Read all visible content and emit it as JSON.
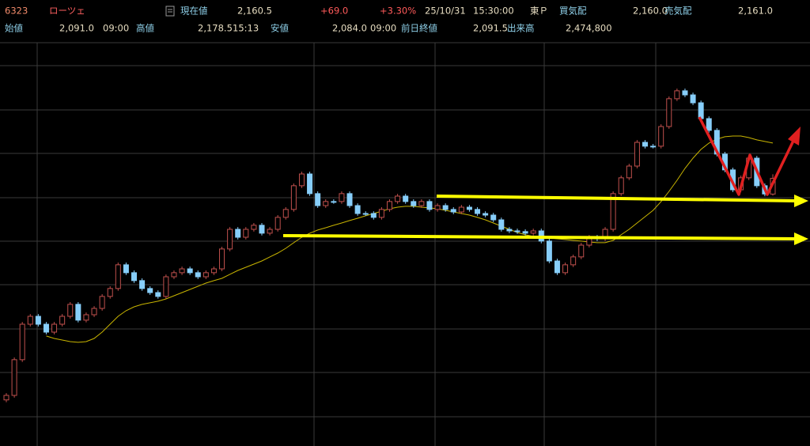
{
  "header": {
    "code": "6323",
    "name": "ローツェ",
    "price_label": "現在値",
    "price": "2,160.5",
    "change": "+69.0",
    "change_pct": "+3.30%",
    "date": "25/10/31",
    "time": "15:30:00",
    "market": "東Ｐ",
    "bid_label": "買気配",
    "bid": "2,160.0",
    "ask_label": "売気配",
    "ask": "2,161.0",
    "open_label": "始値",
    "open": "2,091.0",
    "open_time": "09:00",
    "high_label": "高値",
    "high": "2,178.5",
    "high_time": "15:13",
    "low_label": "安値",
    "low": "2,084.0",
    "low_time": "09:00",
    "prev_close_label": "前日終値",
    "prev_close": "2,091.5",
    "volume_label": "出来高",
    "volume": "2,474,800"
  },
  "chart_data": {
    "type": "candlestick",
    "ylim": [
      990,
      2757.5
    ],
    "up_color": "#c0504d",
    "down_color": "#87cefa",
    "open": [
      1180,
      1200,
      1358,
      1515,
      1550,
      1515,
      1480,
      1515,
      1550,
      1603,
      1533,
      1557,
      1585,
      1638,
      1673,
      1778,
      1743,
      1708,
      1673,
      1655,
      1638,
      1725,
      1743,
      1760,
      1743,
      1725,
      1743,
      1760,
      1848,
      1935,
      1900,
      1935,
      1953,
      1918,
      1935,
      1988,
      2023,
      2128,
      2180,
      2093,
      2040,
      2058,
      2058,
      2093,
      2040,
      2005,
      2005,
      1988,
      2023,
      2058,
      2082,
      2058,
      2040,
      2058,
      2023,
      2040,
      2023,
      2012,
      2033,
      2023,
      2005,
      1998,
      1977,
      1935,
      1928,
      1925,
      1918,
      1928,
      1883,
      1795,
      1743,
      1778,
      1813,
      1865,
      1900,
      1893,
      1935,
      2093,
      2163,
      2215,
      2320,
      2303,
      2303,
      2390,
      2513,
      2548,
      2530,
      2495,
      2425,
      2373,
      2268,
      2198,
      2110,
      2163,
      2250,
      2128,
      2091
    ],
    "high": [
      1210,
      1368,
      1525,
      1560,
      1560,
      1525,
      1525,
      1560,
      1613,
      1613,
      1567,
      1595,
      1648,
      1683,
      1788,
      1788,
      1753,
      1718,
      1683,
      1665,
      1735,
      1753,
      1770,
      1770,
      1753,
      1753,
      1770,
      1858,
      1945,
      1945,
      1945,
      1963,
      1963,
      1945,
      1998,
      2033,
      2138,
      2190,
      2190,
      2103,
      2068,
      2068,
      2103,
      2103,
      2050,
      2015,
      2015,
      2033,
      2068,
      2092,
      2092,
      2068,
      2068,
      2068,
      2050,
      2050,
      2033,
      2043,
      2043,
      2033,
      2015,
      2008,
      1987,
      1945,
      1938,
      1935,
      1938,
      1938,
      1893,
      1805,
      1788,
      1823,
      1875,
      1910,
      1910,
      1945,
      2103,
      2173,
      2225,
      2330,
      2330,
      2313,
      2400,
      2523,
      2558,
      2558,
      2540,
      2505,
      2435,
      2383,
      2278,
      2208,
      2173,
      2260,
      2260,
      2138,
      2178.5
    ],
    "low": [
      1170,
      1190,
      1348,
      1505,
      1505,
      1470,
      1470,
      1505,
      1540,
      1523,
      1523,
      1547,
      1575,
      1628,
      1663,
      1733,
      1698,
      1663,
      1645,
      1628,
      1628,
      1715,
      1733,
      1733,
      1715,
      1715,
      1733,
      1750,
      1838,
      1890,
      1890,
      1925,
      1908,
      1908,
      1925,
      1978,
      2013,
      2118,
      2083,
      2030,
      2030,
      2048,
      2048,
      2030,
      1995,
      1995,
      1978,
      1978,
      2013,
      2048,
      2048,
      2030,
      2030,
      2013,
      2013,
      2013,
      2002,
      2002,
      2013,
      1995,
      1988,
      1967,
      1925,
      1918,
      1915,
      1908,
      1908,
      1873,
      1785,
      1733,
      1733,
      1768,
      1803,
      1855,
      1883,
      1883,
      1925,
      2083,
      2153,
      2205,
      2293,
      2293,
      2293,
      2380,
      2503,
      2520,
      2485,
      2415,
      2363,
      2258,
      2188,
      2100,
      2100,
      2153,
      2118,
      2081.5,
      2084
    ],
    "close": [
      1200,
      1358,
      1515,
      1550,
      1515,
      1480,
      1515,
      1550,
      1603,
      1533,
      1557,
      1585,
      1638,
      1673,
      1778,
      1743,
      1708,
      1673,
      1655,
      1638,
      1725,
      1743,
      1760,
      1743,
      1725,
      1743,
      1760,
      1848,
      1935,
      1900,
      1935,
      1953,
      1918,
      1935,
      1988,
      2023,
      2128,
      2180,
      2093,
      2040,
      2058,
      2058,
      2093,
      2040,
      2005,
      2005,
      1988,
      2023,
      2058,
      2082,
      2058,
      2040,
      2058,
      2023,
      2040,
      2023,
      2012,
      2033,
      2023,
      2005,
      1998,
      1977,
      1935,
      1928,
      1925,
      1918,
      1928,
      1883,
      1795,
      1743,
      1778,
      1813,
      1865,
      1900,
      1893,
      1935,
      2093,
      2163,
      2215,
      2320,
      2303,
      2303,
      2390,
      2513,
      2548,
      2530,
      2495,
      2425,
      2373,
      2268,
      2198,
      2110,
      2163,
      2250,
      2128,
      2091.5,
      2160.5
    ],
    "lines": [
      {
        "color": "#c8b400",
        "values": [
          null,
          null,
          null,
          null,
          null,
          1463,
          1452,
          1445,
          1438,
          1435,
          1438,
          1452,
          1480,
          1515,
          1550,
          1575,
          1592,
          1603,
          1610,
          1617,
          1627,
          1641,
          1655,
          1669,
          1683,
          1697,
          1708,
          1718,
          1736,
          1753,
          1767,
          1781,
          1795,
          1813,
          1830,
          1851,
          1876,
          1900,
          1918,
          1932,
          1942,
          1953,
          1963,
          1974,
          1984,
          1995,
          2005,
          2015,
          2026,
          2033,
          2037,
          2037,
          2033,
          2030,
          2026,
          2019,
          2012,
          2005,
          1998,
          1988,
          1977,
          1963,
          1949,
          1935,
          1921,
          1911,
          1904,
          1900,
          1897,
          1893,
          1890,
          1886,
          1883,
          1879,
          1876,
          1876,
          1886,
          1911,
          1935,
          1963,
          1991,
          2019,
          2058,
          2103,
          2152,
          2205,
          2250,
          2289,
          2317,
          2334,
          2345,
          2348,
          2348,
          2341,
          2331,
          2324,
          2317
        ]
      }
    ]
  }
}
